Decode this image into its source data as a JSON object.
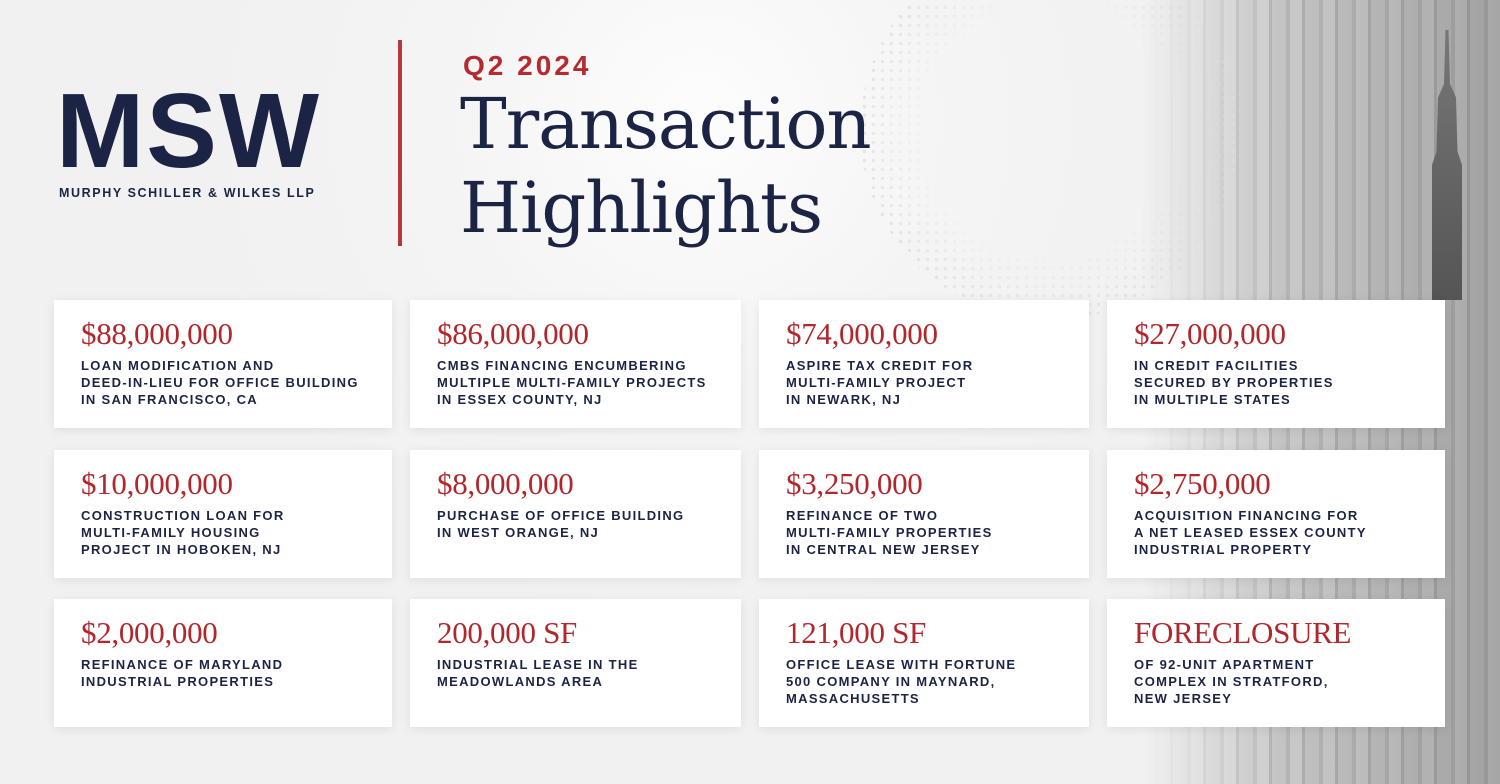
{
  "brand": {
    "logo": "MSW",
    "firm_name": "MURPHY SCHILLER & WILKES LLP"
  },
  "header": {
    "period": "Q2 2024",
    "title_line1": "Transaction",
    "title_line2": "Highlights"
  },
  "colors": {
    "navy": "#1c2445",
    "red": "#b0272c"
  },
  "cards": [
    {
      "amount": "$88,000,000",
      "description": "LOAN MODIFICATION AND\nDEED-IN-LIEU FOR OFFICE BUILDING\nIN SAN FRANCISCO, CA"
    },
    {
      "amount": "$86,000,000",
      "description": "CMBS FINANCING ENCUMBERING\nMULTIPLE MULTI-FAMILY PROJECTS\nIN ESSEX COUNTY, NJ"
    },
    {
      "amount": "$74,000,000",
      "description": "ASPIRE TAX CREDIT FOR\nMULTI-FAMILY PROJECT\nIN NEWARK, NJ"
    },
    {
      "amount": "$27,000,000",
      "description": "IN CREDIT FACILITIES\nSECURED BY PROPERTIES\nIN MULTIPLE STATES"
    },
    {
      "amount": "$10,000,000",
      "description": "CONSTRUCTION LOAN FOR\nMULTI-FAMILY HOUSING\nPROJECT IN HOBOKEN, NJ"
    },
    {
      "amount": "$8,000,000",
      "description": "PURCHASE OF OFFICE BUILDING\nIN WEST ORANGE, NJ"
    },
    {
      "amount": "$3,250,000",
      "description": "REFINANCE OF TWO\nMULTI-FAMILY PROPERTIES\nIN CENTRAL NEW JERSEY"
    },
    {
      "amount": "$2,750,000",
      "description": "ACQUISITION FINANCING FOR\nA NET LEASED ESSEX COUNTY\nINDUSTRIAL PROPERTY"
    },
    {
      "amount": "$2,000,000",
      "description": "REFINANCE OF MARYLAND\nINDUSTRIAL PROPERTIES"
    },
    {
      "amount": "200,000 SF",
      "description": "INDUSTRIAL LEASE IN THE\nMEADOWLANDS AREA"
    },
    {
      "amount": "121,000 SF",
      "description": "OFFICE LEASE WITH FORTUNE\n500 COMPANY IN MAYNARD,\nMASSACHUSETTS"
    },
    {
      "amount": "FORECLOSURE",
      "description": "OF 92-UNIT APARTMENT\nCOMPLEX IN STRATFORD,\nNEW JERSEY"
    }
  ]
}
